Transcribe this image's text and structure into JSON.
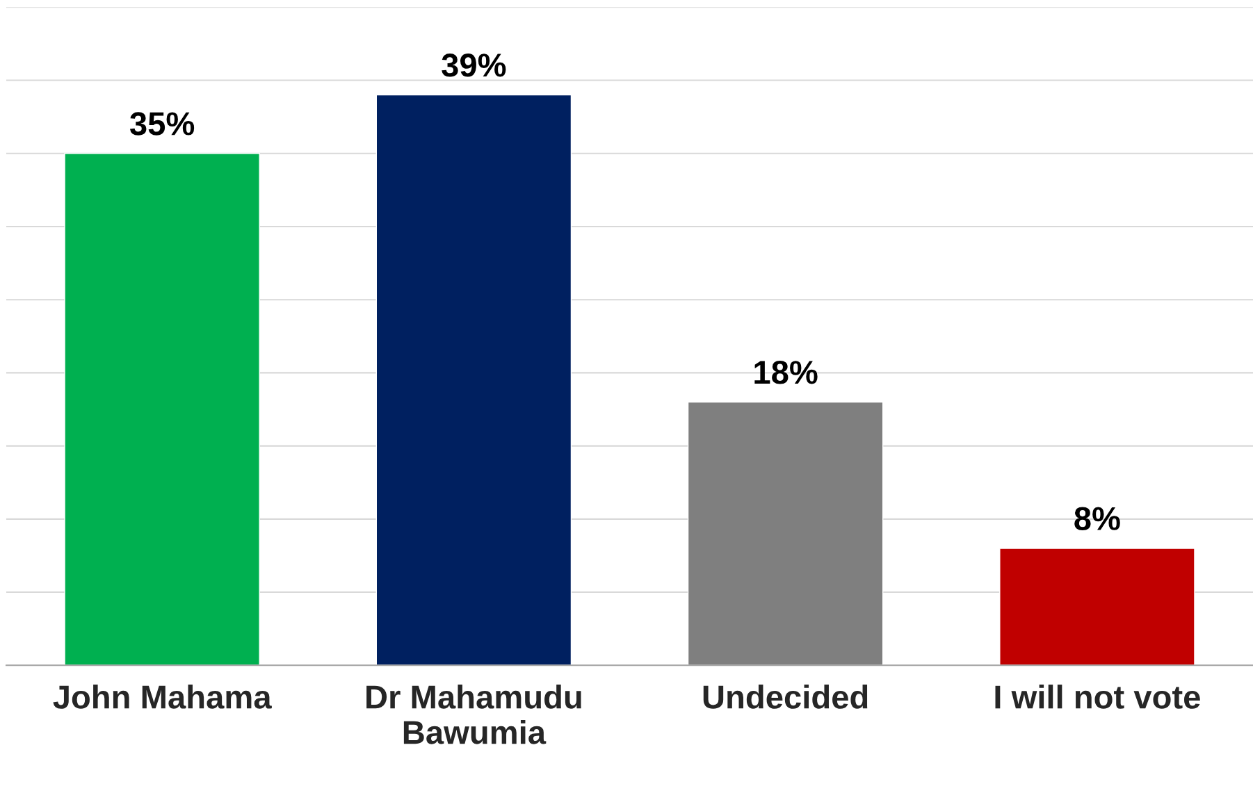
{
  "chart_data": {
    "type": "bar",
    "categories": [
      "John Mahama",
      "Dr Mahamudu\nBawumia",
      "Undecided",
      "I will not vote"
    ],
    "values": [
      35,
      39,
      18,
      8
    ],
    "colors": [
      "#00b050",
      "#002060",
      "#7f7f7f",
      "#c00000"
    ],
    "value_labels": [
      "35%",
      "39%",
      "18%",
      "8%"
    ],
    "ylim": [
      0,
      45
    ],
    "yticks": [
      {
        "value": 0,
        "label": null
      },
      {
        "value": 5,
        "label": null
      },
      {
        "value": 10,
        "label": null
      },
      {
        "value": 15,
        "label": null
      },
      {
        "value": 20,
        "label": null
      },
      {
        "value": 25,
        "label": null
      },
      {
        "value": 30,
        "label": null
      },
      {
        "value": 35,
        "label": null
      },
      {
        "value": 40,
        "label": null
      },
      {
        "value": 45,
        "label": null
      }
    ],
    "tick_labels": "x",
    "grid": "y",
    "legend": false
  }
}
